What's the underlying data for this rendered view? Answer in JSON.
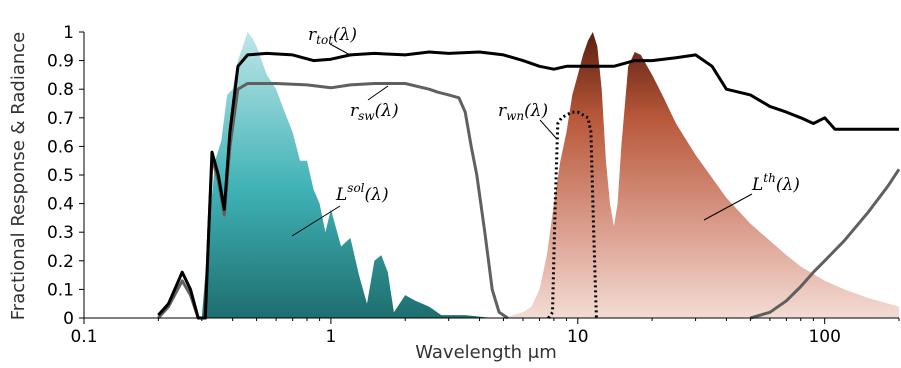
{
  "chart_data": {
    "type": "area",
    "title": "",
    "xlabel": "Wavelength  μm",
    "ylabel": "Fractional Response & Radiance",
    "x_scale": "log",
    "xlim": [
      0.1,
      200
    ],
    "ylim": [
      0,
      1
    ],
    "x_ticks": [
      "0.1",
      "1",
      "10",
      "100"
    ],
    "x_tick_values": [
      0.1,
      1,
      10,
      100
    ],
    "y_ticks": [
      "0",
      "0.1",
      "0.2",
      "0.3",
      "0.4",
      "0.5",
      "0.6",
      "0.7",
      "0.8",
      "0.9",
      "1"
    ],
    "y_tick_values": [
      0,
      0.1,
      0.2,
      0.3,
      0.4,
      0.5,
      0.6,
      0.7,
      0.8,
      0.9,
      1
    ],
    "grid": false,
    "colors": {
      "r_tot": "#000000",
      "r_sw": "#606060",
      "r_wn": "#000000",
      "solar_fill": "#3fb4b8",
      "thermal_fill": "#b0583a"
    },
    "series": [
      {
        "name": "r_tot(λ)",
        "label_main": "r",
        "label_sub": "tot",
        "label_tail": "(λ)",
        "style": "solid",
        "x": [
          0.2,
          0.22,
          0.25,
          0.27,
          0.29,
          0.31,
          0.32,
          0.33,
          0.35,
          0.37,
          0.39,
          0.42,
          0.46,
          0.55,
          0.7,
          0.85,
          1.0,
          1.2,
          1.5,
          2.0,
          2.5,
          3.0,
          4.0,
          5.0,
          6.0,
          7.0,
          8.0,
          9.0,
          10,
          12,
          14,
          17,
          20,
          25,
          30,
          35,
          40,
          50,
          60,
          70,
          80,
          90,
          100,
          110,
          150,
          200
        ],
        "y": [
          0.01,
          0.05,
          0.16,
          0.1,
          0.0,
          0.0,
          0.3,
          0.58,
          0.5,
          0.38,
          0.65,
          0.88,
          0.92,
          0.925,
          0.92,
          0.9,
          0.905,
          0.92,
          0.925,
          0.92,
          0.93,
          0.925,
          0.93,
          0.92,
          0.9,
          0.88,
          0.87,
          0.88,
          0.88,
          0.88,
          0.88,
          0.9,
          0.9,
          0.91,
          0.92,
          0.88,
          0.8,
          0.78,
          0.74,
          0.72,
          0.7,
          0.68,
          0.7,
          0.66,
          0.66,
          0.66
        ]
      },
      {
        "name": "r_sw(λ)",
        "label_main": "r",
        "label_sub": "sw",
        "label_tail": "(λ)",
        "style": "solid",
        "x": [
          0.2,
          0.22,
          0.25,
          0.27,
          0.29,
          0.31,
          0.32,
          0.33,
          0.35,
          0.37,
          0.39,
          0.42,
          0.46,
          0.6,
          0.8,
          1.0,
          1.2,
          1.5,
          2.0,
          2.5,
          2.7,
          3.0,
          3.3,
          3.5,
          3.7,
          3.9,
          4.2,
          4.5,
          4.8,
          5.2
        ],
        "y": [
          0.0,
          0.04,
          0.13,
          0.08,
          0.0,
          0.0,
          0.3,
          0.56,
          0.48,
          0.36,
          0.6,
          0.8,
          0.82,
          0.82,
          0.815,
          0.805,
          0.815,
          0.82,
          0.82,
          0.8,
          0.79,
          0.78,
          0.77,
          0.72,
          0.6,
          0.5,
          0.3,
          0.1,
          0.02,
          0.0
        ]
      },
      {
        "name": "r_sw(λ) long-wave tail",
        "label_main": "",
        "label_sub": "",
        "label_tail": "",
        "style": "solid",
        "x": [
          50,
          60,
          70,
          80,
          90,
          100,
          120,
          150,
          180,
          200
        ],
        "y": [
          0.0,
          0.02,
          0.06,
          0.11,
          0.16,
          0.2,
          0.27,
          0.37,
          0.46,
          0.52
        ]
      },
      {
        "name": "r_wn(λ)",
        "label_main": "r",
        "label_sub": "wn",
        "label_tail": "(λ)",
        "style": "dotted",
        "x": [
          7.6,
          7.9,
          8.1,
          8.3,
          8.6,
          9.0,
          9.5,
          10.0,
          10.5,
          11.0,
          11.3,
          11.6,
          11.9
        ],
        "y": [
          0.0,
          0.02,
          0.4,
          0.68,
          0.7,
          0.71,
          0.72,
          0.72,
          0.71,
          0.7,
          0.65,
          0.3,
          0.0
        ]
      }
    ],
    "areas": [
      {
        "name": "L^sol(λ)",
        "label_main": "L",
        "label_sup": "sol",
        "label_tail": "(λ)",
        "x": [
          0.3,
          0.32,
          0.34,
          0.36,
          0.38,
          0.4,
          0.42,
          0.44,
          0.46,
          0.48,
          0.5,
          0.55,
          0.6,
          0.65,
          0.7,
          0.75,
          0.8,
          0.85,
          0.9,
          0.95,
          1.0,
          1.1,
          1.2,
          1.3,
          1.4,
          1.5,
          1.6,
          1.7,
          1.8,
          2.0,
          2.2,
          2.5,
          2.8,
          3.0,
          3.5,
          4.0,
          4.5,
          5.0
        ],
        "y": [
          0.0,
          0.3,
          0.55,
          0.62,
          0.78,
          0.8,
          0.9,
          0.95,
          1.0,
          0.98,
          0.95,
          0.85,
          0.8,
          0.72,
          0.65,
          0.55,
          0.55,
          0.45,
          0.4,
          0.3,
          0.38,
          0.25,
          0.28,
          0.15,
          0.05,
          0.2,
          0.22,
          0.16,
          0.02,
          0.08,
          0.06,
          0.04,
          0.01,
          0.01,
          0.01,
          0.005,
          0.0,
          0.0
        ]
      },
      {
        "name": "L^th(λ)",
        "label_main": "L",
        "label_sup": "th",
        "label_tail": "(λ)",
        "x": [
          5.0,
          6.0,
          6.5,
          7.0,
          7.5,
          8.0,
          8.5,
          9.0,
          9.5,
          10.0,
          10.5,
          11.0,
          11.5,
          12.0,
          12.5,
          13.0,
          13.5,
          14.0,
          14.5,
          15.0,
          16.0,
          17.0,
          18.0,
          20.0,
          22.0,
          25.0,
          30.0,
          35.0,
          40.0,
          50.0,
          60.0,
          70.0,
          80.0,
          100.0,
          120.0,
          150.0,
          200.0
        ],
        "y": [
          0.0,
          0.02,
          0.04,
          0.1,
          0.22,
          0.4,
          0.55,
          0.65,
          0.78,
          0.85,
          0.92,
          0.97,
          1.0,
          0.95,
          0.8,
          0.55,
          0.4,
          0.32,
          0.4,
          0.6,
          0.88,
          0.93,
          0.92,
          0.85,
          0.78,
          0.68,
          0.57,
          0.49,
          0.42,
          0.33,
          0.27,
          0.22,
          0.18,
          0.13,
          0.1,
          0.07,
          0.04
        ]
      }
    ]
  }
}
